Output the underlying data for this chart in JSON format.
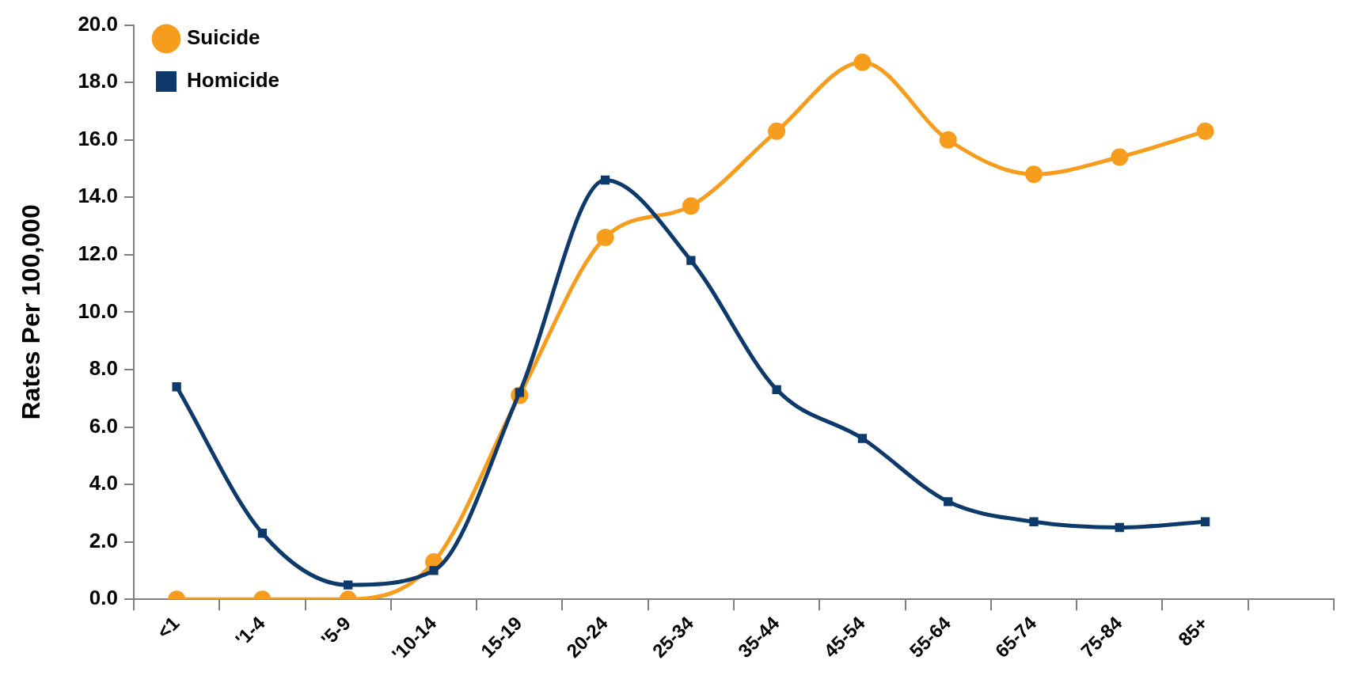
{
  "chart_data": {
    "type": "line",
    "ylabel": "Rates Per 100,000",
    "categories": [
      "<1",
      "'1-4",
      "'5-9",
      "'10-14",
      "15-19",
      "20-24",
      "25-34",
      "35-44",
      "45-54",
      "55-64",
      "65-74",
      "75-84",
      "85+",
      null
    ],
    "series": [
      {
        "name": "Suicide",
        "color": "#f79d1e",
        "marker": "circle",
        "values": [
          0,
          0,
          0,
          1.3,
          7.1,
          12.6,
          13.7,
          16.3,
          18.7,
          16.0,
          14.8,
          15.4,
          16.3,
          null
        ]
      },
      {
        "name": "Homicide",
        "color": "#0d3a6b",
        "marker": "square",
        "values": [
          7.4,
          2.3,
          0.5,
          1.0,
          7.2,
          14.6,
          11.8,
          7.3,
          5.6,
          3.4,
          2.7,
          2.5,
          2.7,
          null
        ]
      }
    ],
    "ylim": [
      0,
      20
    ],
    "yticks": [
      {
        "value": 0,
        "label": "0.0"
      },
      {
        "value": 2,
        "label": "2.0"
      },
      {
        "value": 4,
        "label": "4.0"
      },
      {
        "value": 6,
        "label": "6.0"
      },
      {
        "value": 8,
        "label": "8.0"
      },
      {
        "value": 10,
        "label": "10.0"
      },
      {
        "value": 12,
        "label": "12.0"
      },
      {
        "value": 14,
        "label": "14.0"
      },
      {
        "value": 16,
        "label": "16.0"
      },
      {
        "value": 18,
        "label": "18.0"
      },
      {
        "value": 20,
        "label": "20.0"
      }
    ],
    "grid": false,
    "legend": "top left",
    "line_style": "solid"
  }
}
